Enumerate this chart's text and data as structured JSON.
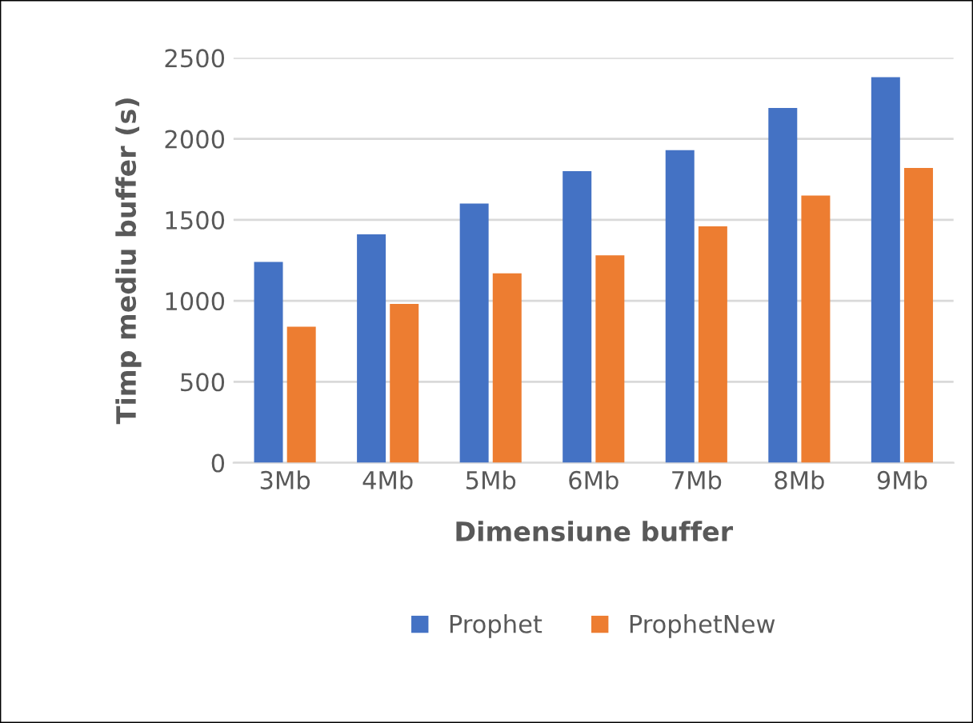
{
  "chart_data": {
    "type": "bar",
    "categories": [
      "3Mb",
      "4Mb",
      "5Mb",
      "6Mb",
      "7Mb",
      "8Mb",
      "9Mb"
    ],
    "series": [
      {
        "name": "Prophet",
        "color": "#4472c4",
        "values": [
          1240,
          1410,
          1600,
          1800,
          1930,
          2190,
          2380
        ]
      },
      {
        "name": "ProphetNew",
        "color": "#ed7d31",
        "values": [
          840,
          980,
          1170,
          1280,
          1460,
          1650,
          1820
        ]
      }
    ],
    "xlabel": "Dimensiune buffer",
    "ylabel": "Timp mediu buffer (s)",
    "ylim": [
      0,
      2500
    ],
    "yticks": [
      0,
      500,
      1000,
      1500,
      2000,
      2500
    ],
    "grid": "y",
    "legend": "bottom"
  }
}
